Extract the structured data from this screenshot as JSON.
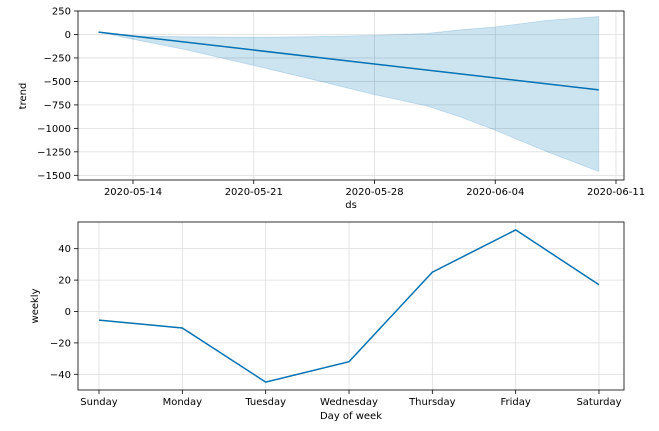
{
  "chart_data": [
    {
      "type": "line",
      "title": "",
      "xlabel": "ds",
      "ylabel": "trend",
      "x_range": [
        "2020-05-10",
        "2020-06-11"
      ],
      "ylim": [
        -1550,
        250
      ],
      "yticks": [
        250,
        0,
        -250,
        -500,
        -750,
        -1000,
        -1250,
        -1500
      ],
      "ytick_labels": [
        "250",
        "0",
        "−250",
        "−500",
        "−750",
        "−1000",
        "−1250",
        "−1500"
      ],
      "xticks": [
        "2020-05-14",
        "2020-05-21",
        "2020-05-28",
        "2020-06-04",
        "2020-06-11"
      ],
      "xtick_labels": [
        "2020-05-14",
        "2020-05-21",
        "2020-05-28",
        "2020-06-04",
        "2020-06-11"
      ],
      "grid": true,
      "series": [
        {
          "name": "trend",
          "color": "#0072B2",
          "x": [
            "2020-05-12",
            "2020-06-10"
          ],
          "values": [
            25,
            -590
          ]
        }
      ],
      "uncertainty_band": {
        "color": "#0072B2",
        "x": [
          "2020-05-12",
          "2020-05-14",
          "2020-05-17",
          "2020-05-21",
          "2020-05-24",
          "2020-05-28",
          "2020-05-31",
          "2020-06-02",
          "2020-06-04",
          "2020-06-07",
          "2020-06-10"
        ],
        "upper": [
          25,
          -15,
          -25,
          -30,
          -25,
          -10,
          10,
          50,
          80,
          150,
          190
        ],
        "lower": [
          25,
          -50,
          -160,
          -330,
          -460,
          -640,
          -760,
          -880,
          -1020,
          -1250,
          -1460
        ]
      }
    },
    {
      "type": "line",
      "title": "",
      "xlabel": "Day of week",
      "ylabel": "weekly",
      "categories": [
        "Sunday",
        "Monday",
        "Tuesday",
        "Wednesday",
        "Thursday",
        "Friday",
        "Saturday"
      ],
      "ylim": [
        -50,
        57
      ],
      "yticks": [
        40,
        20,
        0,
        -20,
        -40
      ],
      "ytick_labels": [
        "40",
        "20",
        "0",
        "−20",
        "−40"
      ],
      "grid": true,
      "series": [
        {
          "name": "weekly",
          "color": "#0072B2",
          "values": [
            -5.5,
            -10.5,
            -45,
            -32,
            25,
            52,
            17
          ]
        }
      ]
    }
  ]
}
